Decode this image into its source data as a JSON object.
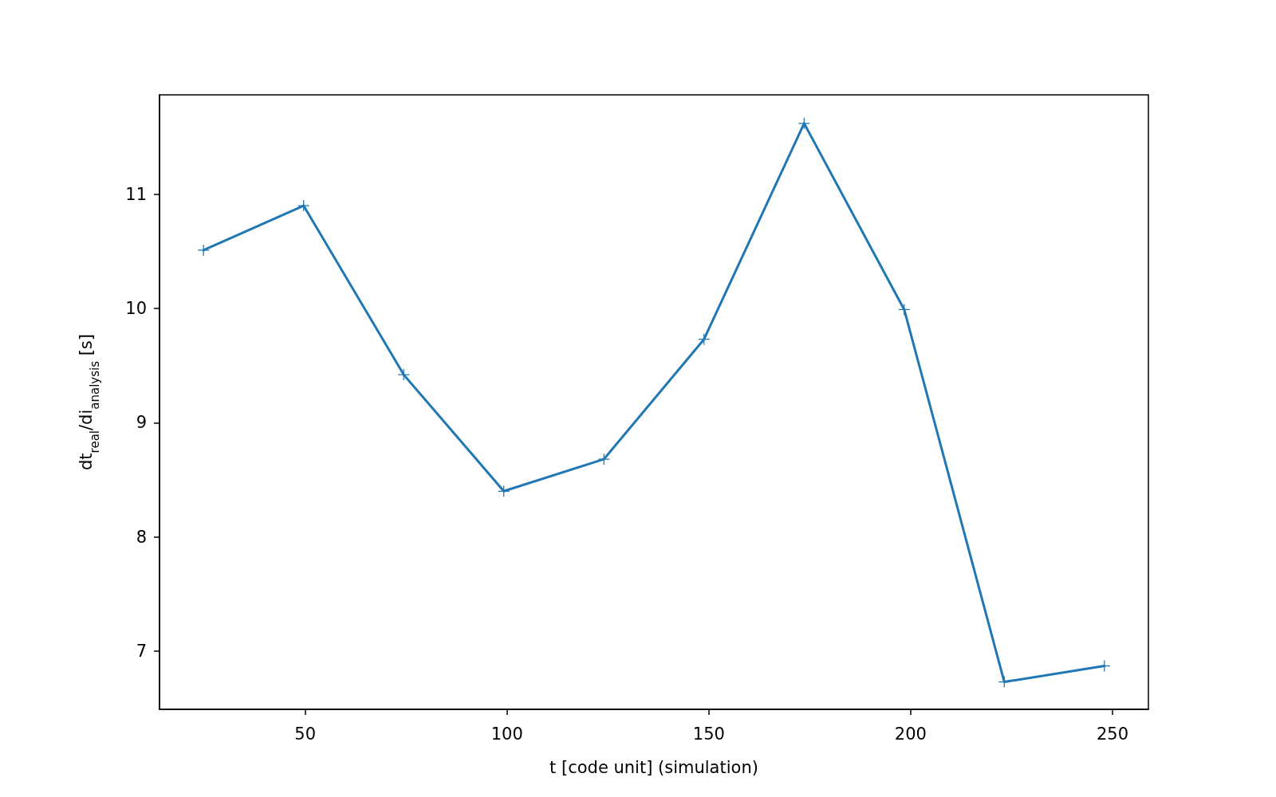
{
  "chart_data": {
    "type": "line",
    "xlabel": "t [code unit] (simulation)",
    "ylabel": "dt$_{real}$/di$_{analysis}$ [s]",
    "x": [
      24.8,
      49.6,
      74.4,
      99.2,
      124,
      148.8,
      173.6,
      198.4,
      223.2,
      248
    ],
    "series": [
      {
        "color": "#1f77b4",
        "values": [
          10.51,
          10.9,
          9.42,
          8.4,
          8.68,
          9.73,
          11.62,
          9.99,
          6.73,
          6.87
        ]
      }
    ],
    "xlim": [
      13.9,
      258.9
    ],
    "xticks": [
      50,
      100,
      150,
      200,
      250
    ],
    "ylim": [
      6.49,
      11.87
    ],
    "yticks": [
      7,
      8,
      9,
      10,
      11
    ],
    "grid": false,
    "marker": "cross",
    "line_style": "solid"
  }
}
